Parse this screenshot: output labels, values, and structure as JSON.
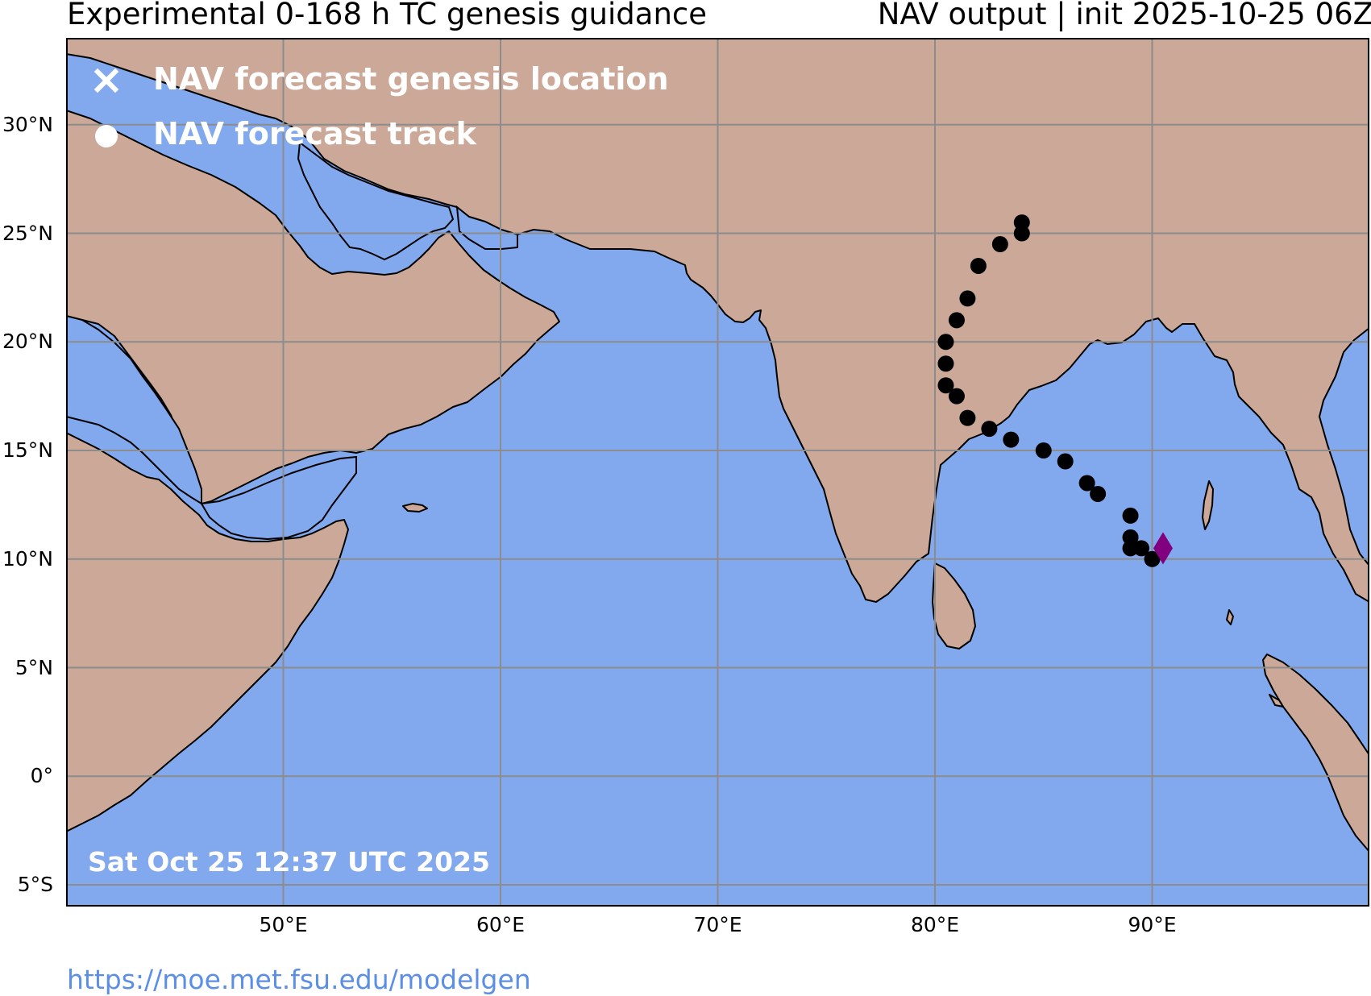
{
  "header": {
    "title_left": "Experimental 0-168 h TC genesis guidance",
    "title_right": "NAV output | init 2025-10-25 06Z"
  },
  "map": {
    "lat_labels": [
      "30°N",
      "25°N",
      "20°N",
      "15°N",
      "10°N",
      "5°N",
      "0°",
      "5°S"
    ],
    "lon_labels": [
      "50°E",
      "60°E",
      "70°E",
      "80°E",
      "90°E"
    ],
    "ocean_color": "#82a8ee",
    "land_color": "#cba897",
    "grid_color": "#8c8c8c",
    "track_color": "#000000",
    "genesis_marker_color": "#800080",
    "genesis_point": {
      "lon": 90.5,
      "lat": 10.5
    },
    "track": [
      {
        "lon": 84.0,
        "lat": 25.5
      },
      {
        "lon": 84.0,
        "lat": 25.0
      },
      {
        "lon": 83.0,
        "lat": 24.5
      },
      {
        "lon": 82.0,
        "lat": 23.5
      },
      {
        "lon": 81.5,
        "lat": 22.0
      },
      {
        "lon": 81.0,
        "lat": 21.0
      },
      {
        "lon": 80.5,
        "lat": 20.0
      },
      {
        "lon": 80.5,
        "lat": 19.0
      },
      {
        "lon": 80.5,
        "lat": 18.0
      },
      {
        "lon": 81.0,
        "lat": 17.5
      },
      {
        "lon": 81.5,
        "lat": 16.5
      },
      {
        "lon": 82.5,
        "lat": 16.0
      },
      {
        "lon": 83.5,
        "lat": 15.5
      },
      {
        "lon": 85.0,
        "lat": 15.0
      },
      {
        "lon": 86.0,
        "lat": 14.5
      },
      {
        "lon": 87.0,
        "lat": 13.5
      },
      {
        "lon": 87.5,
        "lat": 13.0
      },
      {
        "lon": 89.0,
        "lat": 12.0
      },
      {
        "lon": 89.0,
        "lat": 11.0
      },
      {
        "lon": 89.0,
        "lat": 10.5
      },
      {
        "lon": 89.5,
        "lat": 10.5
      },
      {
        "lon": 90.0,
        "lat": 10.0
      }
    ]
  },
  "legend": {
    "genesis_label": "NAV forecast genesis location",
    "track_label": "NAV forecast track"
  },
  "timestamp": "Sat Oct 25 12:37 UTC 2025",
  "footer": {
    "url": "https://moe.met.fsu.edu/modelgen"
  }
}
